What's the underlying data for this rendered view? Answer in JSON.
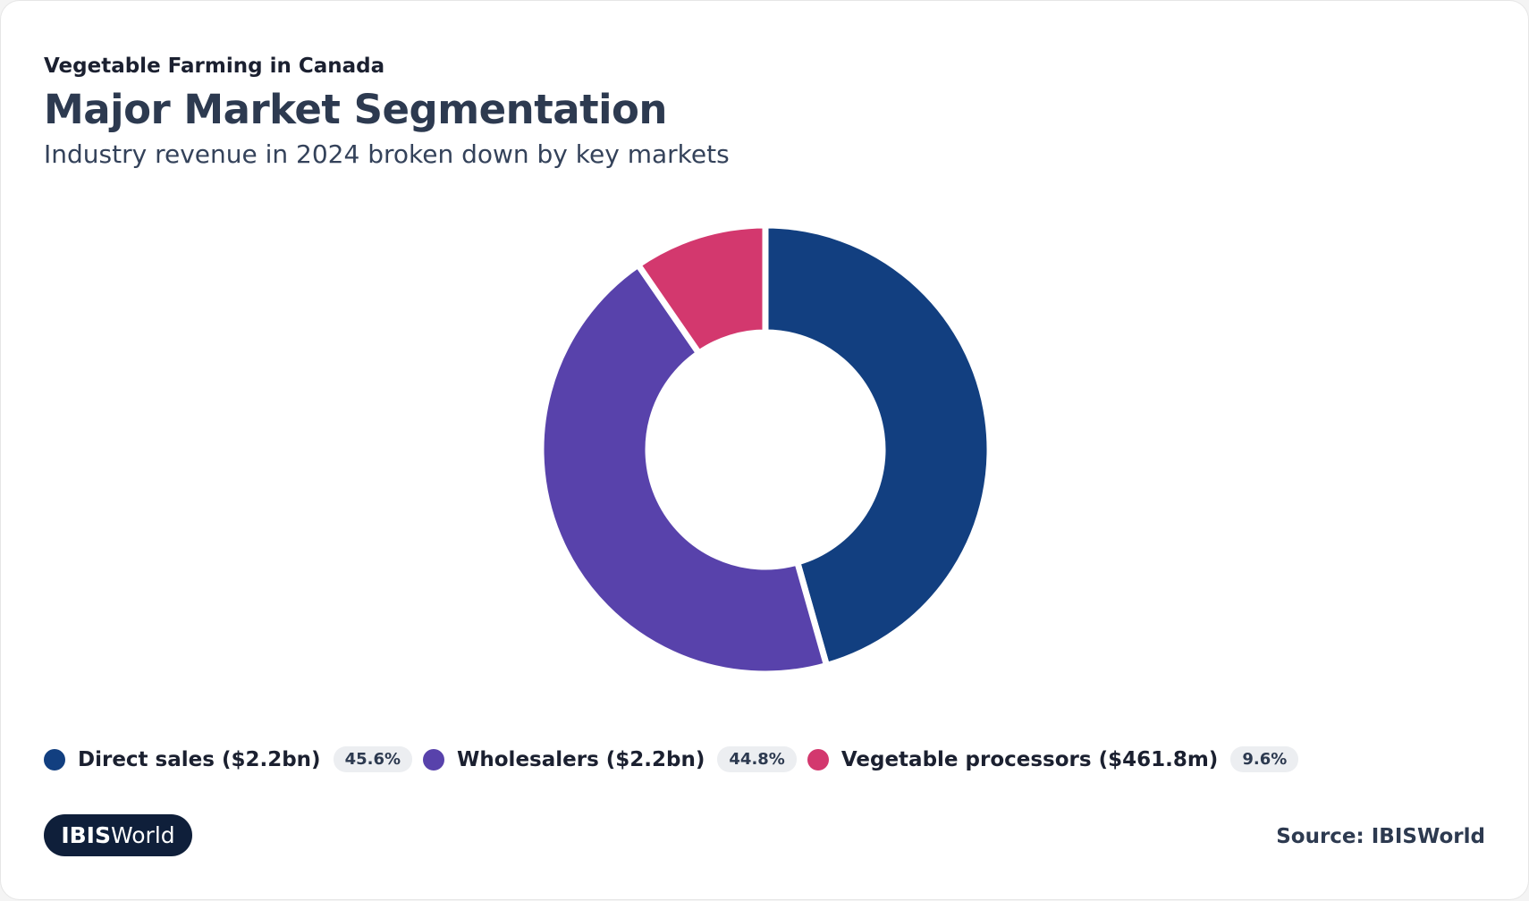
{
  "chart_data": {
    "type": "donut",
    "supertitle": "Vegetable Farming in Canada",
    "title": "Major Market Segmentation",
    "subtitle": "Industry revenue in 2024 broken down by key markets",
    "categories": [
      "Direct sales ($2.2bn)",
      "Wholesalers ($2.2bn)",
      "Vegetable processors ($461.8m)"
    ],
    "values": [
      45.6,
      44.8,
      9.6
    ],
    "value_labels": [
      "45.6%",
      "44.8%",
      "9.6%"
    ],
    "colors": [
      "#123f80",
      "#5842ab",
      "#d3386e"
    ],
    "source": "Source: IBISWorld"
  },
  "logo": {
    "bold": "IBIS",
    "regular": "World"
  }
}
